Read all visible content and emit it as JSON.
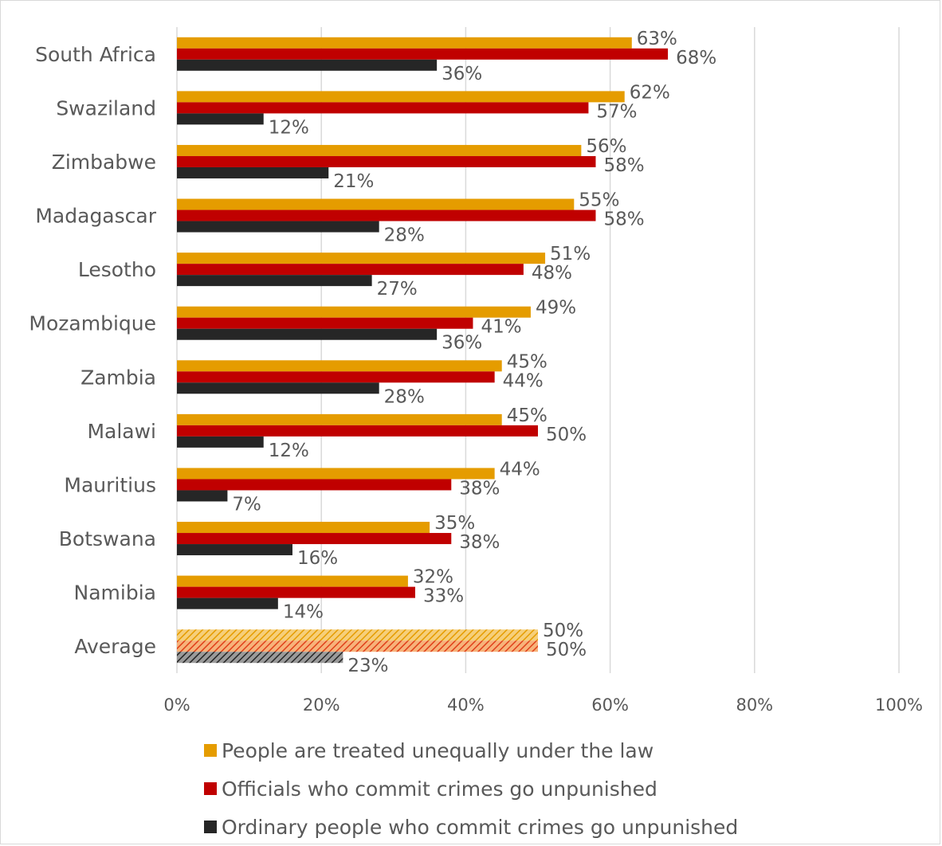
{
  "chart_data": {
    "type": "bar",
    "orientation": "horizontal",
    "categories": [
      "South Africa",
      "Swaziland",
      "Zimbabwe",
      "Madagascar",
      "Lesotho",
      "Mozambique",
      "Zambia",
      "Malawi",
      "Mauritius",
      "Botswana",
      "Namibia",
      "Average"
    ],
    "series": [
      {
        "name": "People are treated unequally under the law",
        "color": "#E59C00",
        "values": [
          63,
          62,
          56,
          55,
          51,
          49,
          45,
          45,
          44,
          35,
          32,
          50
        ],
        "labels": [
          "63%",
          "62%",
          "56%",
          "55%",
          "51%",
          "49%",
          "45%",
          "45%",
          "44%",
          "35%",
          "32%",
          "50%"
        ]
      },
      {
        "name": "Officials who commit crimes go unpunished",
        "color": "#C00000",
        "values": [
          68,
          57,
          58,
          58,
          48,
          41,
          44,
          50,
          38,
          38,
          33,
          50
        ],
        "labels": [
          "68%",
          "57%",
          "58%",
          "58%",
          "48%",
          "41%",
          "44%",
          "50%",
          "38%",
          "38%",
          "33%",
          "50%"
        ]
      },
      {
        "name": "Ordinary people who commit crimes go unpunished",
        "color": "#262626",
        "values": [
          36,
          12,
          21,
          28,
          27,
          36,
          28,
          12,
          7,
          16,
          14,
          23
        ],
        "labels": [
          "36%",
          "12%",
          "21%",
          "28%",
          "27%",
          "36%",
          "28%",
          "12%",
          "7%",
          "16%",
          "14%",
          "23%"
        ]
      }
    ],
    "highlighted_category": "Average",
    "highlight_style": "hatched",
    "xlim": [
      0,
      100
    ],
    "x_ticks": [
      "0%",
      "20%",
      "40%",
      "60%",
      "80%",
      "100%"
    ],
    "grid": "vertical",
    "legend_position": "bottom",
    "title": "",
    "xlabel": "",
    "ylabel": ""
  }
}
